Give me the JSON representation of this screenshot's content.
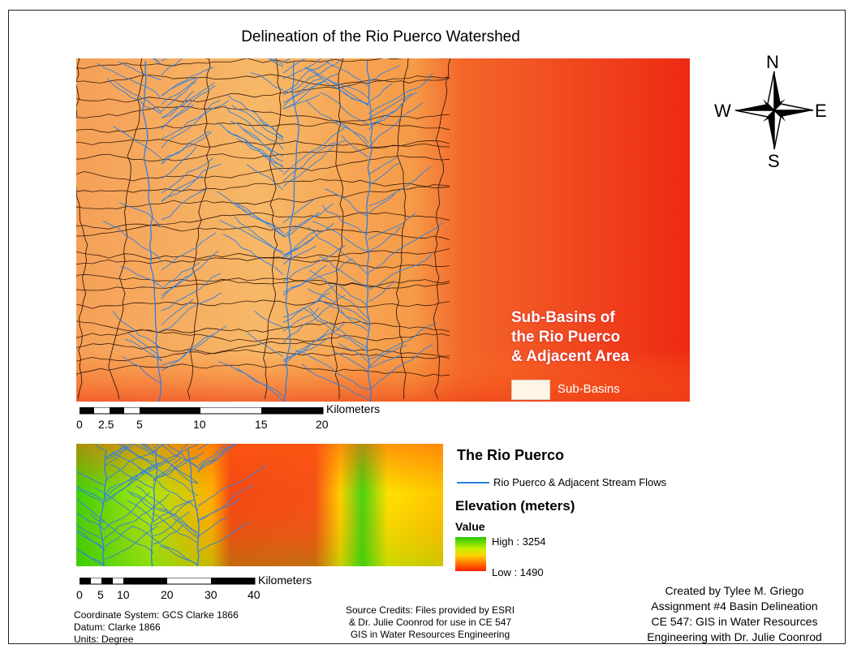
{
  "title": "Delineation of the Rio Puerco Watershed",
  "north_arrow": {
    "n": "N",
    "s": "S",
    "e": "E",
    "w": "W",
    "icon": "compass-rose-icon"
  },
  "main_map": {
    "legend_title_lines": [
      "Sub-Basins of",
      "the Rio Puerco",
      "& Adjacent Area"
    ],
    "legend_item_label": "Sub-Basins",
    "swatch_color": "#fff5e6",
    "stream_color": "#2f7fe0",
    "boundary_color": "#3a1a0a",
    "elevation_colors": [
      "#f6b868",
      "#f7a652",
      "#f68a3a",
      "#f35a22",
      "#ee2d14"
    ]
  },
  "scalebar_main": {
    "unit_label": "Kilometers",
    "ticks": [
      "0",
      "2.5",
      "5",
      "10",
      "15",
      "20"
    ]
  },
  "inset": {
    "title": "The Rio Puerco",
    "stream_legend": "Rio Puerco & Adjacent Stream Flows",
    "elevation_title": "Elevation (meters)",
    "value_label": "Value",
    "high_label": "High : 3254",
    "low_label": "Low : 1490"
  },
  "scalebar_inset": {
    "unit_label": "Kilometers",
    "ticks": [
      "0",
      "5",
      "10",
      "20",
      "30",
      "40"
    ]
  },
  "coordinate_info": [
    "Coordinate System: GCS Clarke 1866",
    "Datum: Clarke 1866",
    "Units: Degree"
  ],
  "source_credits": [
    "Source Credits: Files provided by ESRI",
    "& Dr. Julie Coonrod for use in CE 547",
    "GIS in Water Resources Engineering"
  ],
  "created_by": [
    "Created by Tylee M. Griego",
    "Assignment #4 Basin Delineation",
    "CE 547: GIS in Water Resources",
    "Engineering with Dr. Julie Coonrod"
  ]
}
